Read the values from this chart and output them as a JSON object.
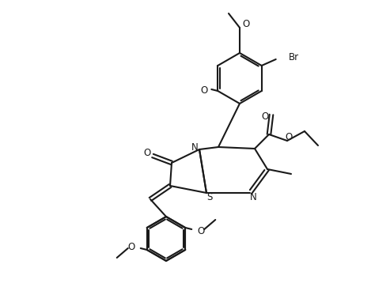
{
  "bg": "#ffffff",
  "lc": "#1a1a1a",
  "lw": 1.5,
  "fs": 8.5,
  "figsize": [
    4.93,
    3.83
  ],
  "dpi": 100
}
